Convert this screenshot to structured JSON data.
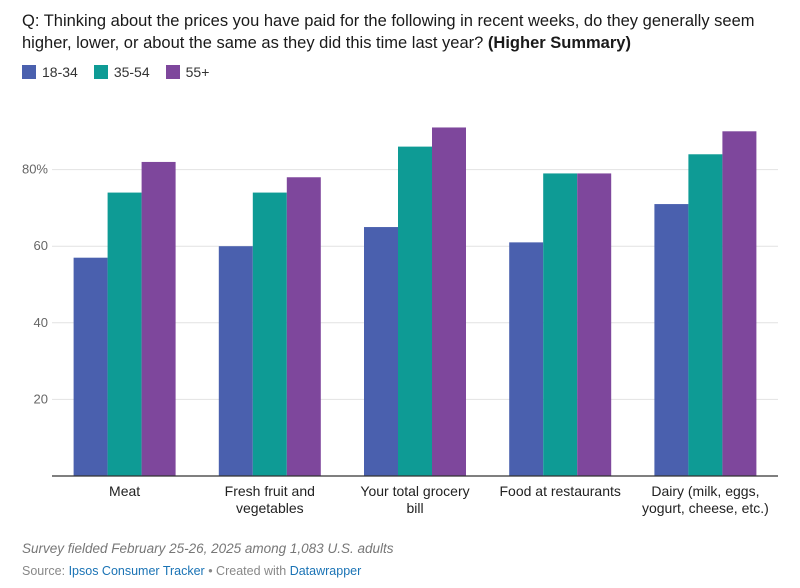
{
  "title": {
    "question": "Q: Thinking about the prices you have paid for the following in recent weeks, do they generally seem higher, lower, or about the same as they did this time last year? ",
    "emphasis": "(Higher Summary)"
  },
  "legend": [
    {
      "label": "18-34",
      "color": "#4a60ae"
    },
    {
      "label": "35-54",
      "color": "#0e9b95"
    },
    {
      "label": "55+",
      "color": "#7e479c"
    }
  ],
  "chart_data": {
    "type": "bar",
    "categories": [
      [
        "Meat"
      ],
      [
        "Fresh fruit and",
        "vegetables"
      ],
      [
        "Your total grocery",
        "bill"
      ],
      [
        "Food at restaurants"
      ],
      [
        "Dairy (milk, eggs,",
        "yogurt, cheese, etc.)"
      ]
    ],
    "series": [
      {
        "name": "18-34",
        "color": "#4a60ae",
        "values": [
          57,
          60,
          65,
          61,
          71
        ]
      },
      {
        "name": "35-54",
        "color": "#0e9b95",
        "values": [
          74,
          74,
          86,
          79,
          84
        ]
      },
      {
        "name": "55+",
        "color": "#7e479c",
        "values": [
          82,
          78,
          91,
          79,
          90
        ]
      }
    ],
    "ylim": [
      0,
      100
    ],
    "yticks": [
      {
        "value": 20,
        "label": "20"
      },
      {
        "value": 40,
        "label": "40"
      },
      {
        "value": 60,
        "label": "60"
      },
      {
        "value": 80,
        "label": "80%"
      }
    ],
    "grid": true,
    "legend_position": "top-left"
  },
  "footer": {
    "note": "Survey fielded February 25-26, 2025 among 1,083 U.S. adults",
    "source_prefix": "Source: ",
    "source_link": "Ipsos Consumer Tracker",
    "created_prefix": " • Created with ",
    "created_link": "Datawrapper"
  }
}
